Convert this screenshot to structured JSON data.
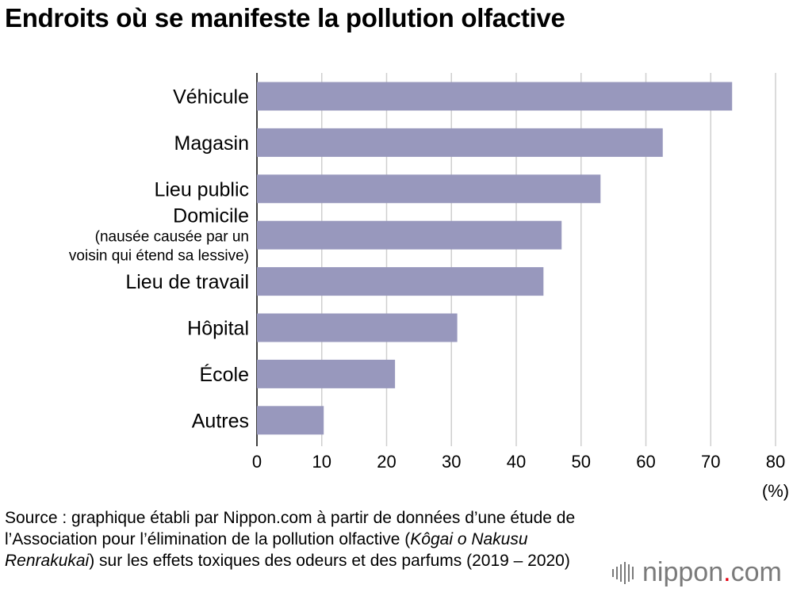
{
  "chart_data": {
    "type": "bar",
    "orientation": "horizontal",
    "title": "Endroits où se manifeste la pollution olfactive",
    "unit_label": "(%)",
    "categories": [
      [
        "Véhicule"
      ],
      [
        "Magasin"
      ],
      [
        "Lieu public"
      ],
      [
        "Domicile",
        "(nausée causée par un",
        "voisin qui étend sa lessive)"
      ],
      [
        "Lieu de travail"
      ],
      [
        "Hôpital"
      ],
      [
        "École"
      ],
      [
        "Autres"
      ]
    ],
    "values": [
      73.3,
      62.6,
      53.0,
      47.0,
      44.2,
      30.9,
      21.3,
      10.3
    ],
    "xlim": [
      0,
      80
    ],
    "xticks": [
      0,
      10,
      20,
      30,
      40,
      50,
      60,
      70,
      80
    ],
    "grid": "vertical",
    "bar_color": "#9898bd"
  },
  "source": {
    "text_before": "Source : graphique établi par Nippon.com à partir de données d’une étude de l’Association pour l’élimination de la pollution olfactive (",
    "text_italic": "Kôgai o Nakusu Renrakukai",
    "text_after": ") sur les effets toxiques des odeurs et des parfums (2019 – 2020)"
  },
  "logo": {
    "text": "nippon.com",
    "text_main": "nippon",
    "text_dot": ".",
    "text_tld": "com"
  }
}
